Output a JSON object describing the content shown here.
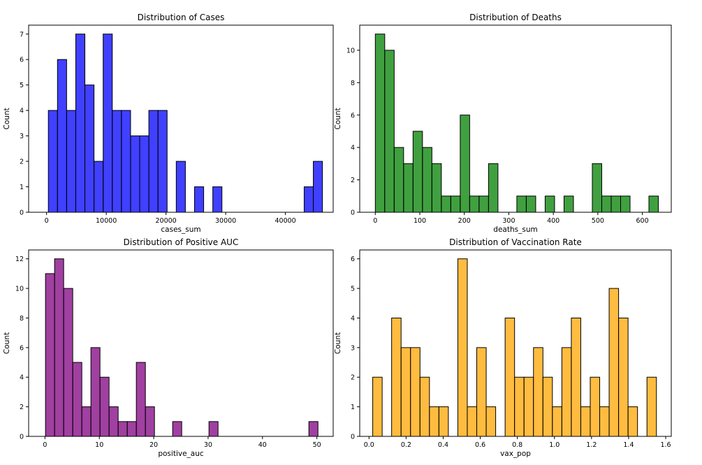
{
  "chart_data": [
    {
      "type": "bar",
      "title": "Distribution of Cases",
      "xlabel": "cases_sum",
      "ylabel": "Count",
      "color": "#0000ff",
      "xlim": [
        -3000,
        48000
      ],
      "ylim": [
        0,
        7.35
      ],
      "xticks": [
        0,
        10000,
        20000,
        30000,
        40000
      ],
      "yticks": [
        0,
        1,
        2,
        3,
        4,
        5,
        6,
        7
      ],
      "bin_start": 300,
      "bin_width": 1530,
      "values": [
        4,
        6,
        4,
        7,
        5,
        2,
        7,
        4,
        4,
        3,
        3,
        4,
        4,
        0,
        2,
        0,
        1,
        0,
        1,
        0,
        0,
        0,
        0,
        0,
        0,
        0,
        0,
        0,
        1,
        2
      ],
      "grid": false
    },
    {
      "type": "bar",
      "title": "Distribution of Deaths",
      "xlabel": "deaths_sum",
      "ylabel": "Count",
      "color": "#008000",
      "xlim": [
        -35,
        665
      ],
      "ylim": [
        0,
        11.55
      ],
      "xticks": [
        0,
        100,
        200,
        300,
        400,
        500,
        600
      ],
      "yticks": [
        0,
        2,
        4,
        6,
        8,
        10
      ],
      "bin_start": 0,
      "bin_width": 21.2,
      "values": [
        11,
        10,
        4,
        3,
        5,
        4,
        3,
        1,
        1,
        6,
        1,
        1,
        3,
        0,
        0,
        1,
        1,
        0,
        1,
        0,
        1,
        0,
        0,
        3,
        1,
        1,
        1,
        0,
        0,
        1
      ],
      "grid": false
    },
    {
      "type": "bar",
      "title": "Distribution of Positive AUC",
      "xlabel": "positive_auc",
      "ylabel": "Count",
      "color": "#800080",
      "xlim": [
        -3,
        53
      ],
      "ylim": [
        0,
        12.6
      ],
      "xticks": [
        0,
        10,
        20,
        30,
        40,
        50
      ],
      "yticks": [
        0,
        2,
        4,
        6,
        8,
        10,
        12
      ],
      "bin_start": 0.1,
      "bin_width": 1.67,
      "values": [
        11,
        12,
        10,
        5,
        2,
        6,
        4,
        2,
        1,
        1,
        5,
        2,
        0,
        0,
        1,
        0,
        0,
        0,
        1,
        0,
        0,
        0,
        0,
        0,
        0,
        0,
        0,
        0,
        0,
        1
      ],
      "grid": false
    },
    {
      "type": "bar",
      "title": "Distribution of Vaccination Rate",
      "xlabel": "vax_pop",
      "ylabel": "Count",
      "color": "#ffa500",
      "xlim": [
        -0.05,
        1.63
      ],
      "ylim": [
        0,
        6.3
      ],
      "xticks": [
        0.0,
        0.2,
        0.4,
        0.6,
        0.8,
        1.0,
        1.2,
        1.4,
        1.6
      ],
      "xtick_labels": [
        "0.0",
        "0.2",
        "0.4",
        "0.6",
        "0.8",
        "1.0",
        "1.2",
        "1.4",
        "1.6"
      ],
      "yticks": [
        0,
        1,
        2,
        3,
        4,
        5,
        6
      ],
      "bin_start": 0.02,
      "bin_width": 0.051,
      "values": [
        2,
        0,
        4,
        3,
        3,
        2,
        1,
        1,
        0,
        6,
        1,
        3,
        1,
        0,
        4,
        2,
        2,
        3,
        2,
        1,
        3,
        4,
        1,
        2,
        1,
        5,
        4,
        1,
        0,
        2
      ],
      "grid": false
    }
  ]
}
